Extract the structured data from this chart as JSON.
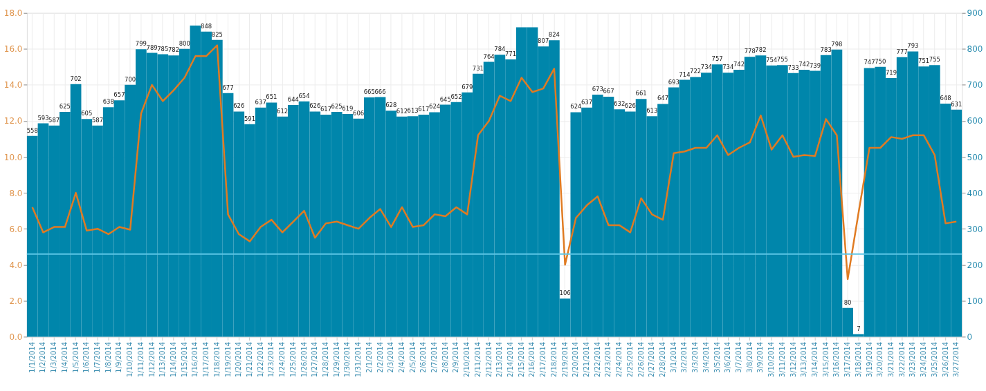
{
  "chart_data": {
    "type": "bar",
    "categories": [
      "1/1/2014",
      "1/2/2014",
      "1/3/2014",
      "1/4/2014",
      "1/5/2014",
      "1/6/2014",
      "1/7/2014",
      "1/8/2014",
      "1/9/2014",
      "1/10/2014",
      "1/11/2014",
      "1/12/2014",
      "1/13/2014",
      "1/14/2014",
      "1/15/2014",
      "1/16/2014",
      "1/17/2014",
      "1/18/2014",
      "1/19/2014",
      "1/20/2014",
      "1/21/2014",
      "1/22/2014",
      "1/23/2014",
      "1/24/2014",
      "1/25/2014",
      "1/26/2014",
      "1/27/2014",
      "1/28/2014",
      "1/29/2014",
      "1/30/2014",
      "1/31/2014",
      "2/1/2014",
      "2/2/2014",
      "2/3/2014",
      "2/4/2014",
      "2/5/2014",
      "2/6/2014",
      "2/7/2014",
      "2/8/2014",
      "2/9/2014",
      "2/10/2014",
      "2/11/2014",
      "2/12/2014",
      "2/13/2014",
      "2/14/2014",
      "2/15/2014",
      "2/16/2014",
      "2/17/2014",
      "2/18/2014",
      "2/19/2014",
      "2/20/2014",
      "2/21/2014",
      "2/22/2014",
      "2/23/2014",
      "2/24/2014",
      "2/25/2014",
      "2/26/2014",
      "2/27/2014",
      "2/28/2014",
      "3/1/2014",
      "3/2/2014",
      "3/3/2014",
      "3/4/2014",
      "3/5/2014",
      "3/6/2014",
      "3/7/2014",
      "3/8/2014",
      "3/9/2014",
      "3/10/2014",
      "3/11/2014",
      "3/12/2014",
      "3/13/2014",
      "3/14/2014",
      "3/15/2014",
      "3/16/2014",
      "3/17/2014",
      "3/18/2014",
      "3/19/2014",
      "3/20/2014",
      "3/21/2014",
      "3/22/2014",
      "3/23/2014",
      "3/24/2014",
      "3/25/2014",
      "3/26/2014",
      "3/27/2014"
    ],
    "series": [
      {
        "axis": "y2",
        "color": "#0086ab",
        "values": [
          558,
          593,
          587,
          625,
          702,
          605,
          587,
          638,
          657,
          700,
          799,
          789,
          785,
          782,
          800,
          865,
          848,
          825,
          677,
          626,
          591,
          637,
          651,
          612,
          644,
          654,
          626,
          617,
          625,
          619,
          606,
          665,
          666,
          628,
          612,
          613,
          617,
          624,
          645,
          652,
          679,
          731,
          764,
          784,
          771,
          860,
          860,
          807,
          824,
          106,
          624,
          637,
          673,
          667,
          632,
          626,
          661,
          613,
          647,
          693,
          714,
          722,
          734,
          757,
          734,
          742,
          778,
          782,
          754,
          755,
          733,
          742,
          739,
          783,
          798,
          80,
          7,
          747,
          750,
          719,
          777,
          793,
          751,
          755,
          648,
          631
        ],
        "value_labels": [
          "558",
          "593",
          "587",
          "625",
          "702",
          "605",
          "587",
          "638",
          "657",
          "700",
          "799",
          "789",
          "785",
          "782",
          "800",
          null,
          "848",
          "825",
          "677",
          "626",
          "591",
          "637",
          "651",
          "612",
          "644",
          "654",
          "626",
          "617",
          "625",
          "619",
          "606",
          "665",
          "666",
          "628",
          "612",
          "613",
          "617",
          "624",
          "645",
          "652",
          "679",
          "731",
          "764",
          "784",
          "771",
          null,
          null,
          "807",
          "824",
          "106",
          "624",
          "637",
          "673",
          "667",
          "632",
          "626",
          "661",
          "613",
          "647",
          "693",
          "714",
          "722",
          "734",
          "757",
          "734",
          "742",
          "778",
          "782",
          "754",
          "755",
          "733",
          "742",
          "739",
          "783",
          "798",
          "80",
          "7",
          "747",
          "750",
          "719",
          "777",
          "793",
          "751",
          "755",
          "648",
          "631"
        ]
      },
      {
        "type": "line",
        "color": "#e07b22",
        "values": [
          7.2,
          5.8,
          6.1,
          6.1,
          8.0,
          5.9,
          6.0,
          5.7,
          6.1,
          5.95,
          12.4,
          14.0,
          13.1,
          13.7,
          14.4,
          15.6,
          15.6,
          16.2,
          6.8,
          5.7,
          5.3,
          6.1,
          6.5,
          5.8,
          6.4,
          7.0,
          5.5,
          6.3,
          6.4,
          6.2,
          6.0,
          6.6,
          7.1,
          6.1,
          7.2,
          6.1,
          6.2,
          6.8,
          6.7,
          7.2,
          6.8,
          11.2,
          12.0,
          13.4,
          13.1,
          14.4,
          13.6,
          13.8,
          14.9,
          4.0,
          6.6,
          7.3,
          7.8,
          6.2,
          6.2,
          5.8,
          7.7,
          6.8,
          6.5,
          10.2,
          10.3,
          10.5,
          10.5,
          11.2,
          10.1,
          10.5,
          10.8,
          12.3,
          10.4,
          11.2,
          10.0,
          10.1,
          10.05,
          12.1,
          11.2,
          3.2,
          6.9,
          10.5,
          10.5,
          11.1,
          11.0,
          11.2,
          11.2,
          10.1,
          6.3,
          6.4
        ]
      }
    ],
    "ylim": [
      0,
      18
    ],
    "yticks": [
      {
        "value": 0,
        "label": "0.0"
      },
      {
        "value": 2,
        "label": "2.0"
      },
      {
        "value": 4,
        "label": "4.0"
      },
      {
        "value": 6,
        "label": "6.0"
      },
      {
        "value": 8,
        "label": "8.0"
      },
      {
        "value": 10,
        "label": "10.0"
      },
      {
        "value": 12,
        "label": "12.0"
      },
      {
        "value": 14,
        "label": "14.0"
      },
      {
        "value": 16,
        "label": "16.0"
      },
      {
        "value": 18,
        "label": "18.0"
      }
    ],
    "y2lim": [
      0,
      900
    ],
    "y2ticks": [
      0,
      100,
      200,
      300,
      400,
      500,
      600,
      700,
      800,
      900
    ],
    "ref_lines": [
      {
        "axis": "y",
        "value": 4.6,
        "color": "#5cc6e6"
      }
    ],
    "grid": true
  }
}
